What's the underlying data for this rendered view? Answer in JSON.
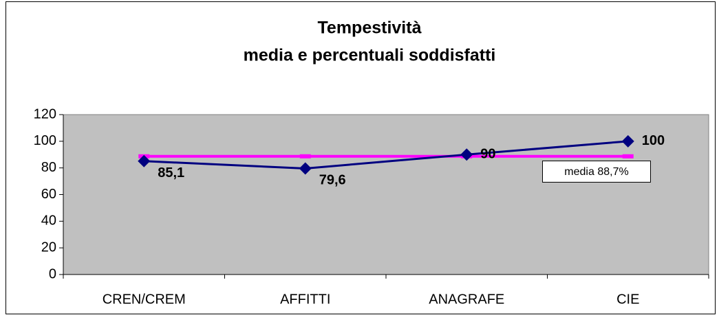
{
  "chart_data": {
    "type": "line",
    "title": [
      "Tempestività",
      "media e percentuali soddisfatti"
    ],
    "categories": [
      "CREN/CREM",
      "AFFITTI",
      "ANAGRAFE",
      "CIE"
    ],
    "series": [
      {
        "color": "#000080",
        "values": [
          85.1,
          79.6,
          90,
          100
        ],
        "value_labels": [
          "85,1",
          "79,6",
          "90",
          "100"
        ]
      },
      {
        "color": "#ff00ff",
        "values": [
          88.7,
          88.7,
          88.7,
          88.7
        ]
      }
    ],
    "annotation": "media 88,7%",
    "ylim": [
      0,
      120
    ],
    "yticks": [
      0,
      20,
      40,
      60,
      80,
      100,
      120
    ],
    "plot_background": "#c0c0c0"
  }
}
